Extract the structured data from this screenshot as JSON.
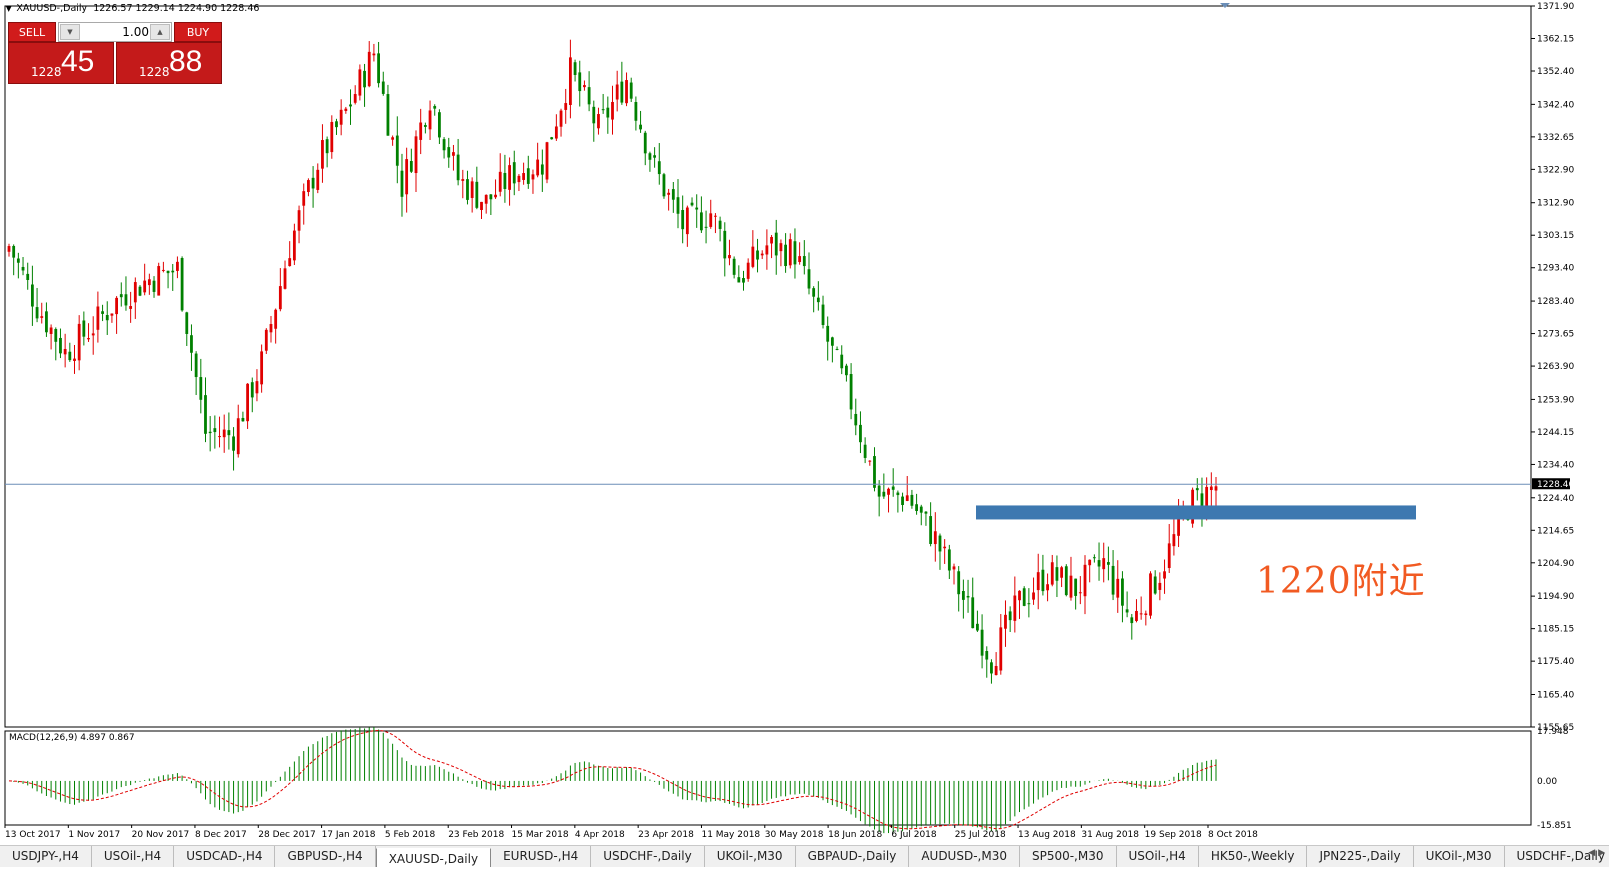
{
  "header": {
    "symbol": "XAUUSD-,Daily",
    "ohlc": "1226.57 1229.14 1224.90 1228.46"
  },
  "trade_panel": {
    "sell_label": "SELL",
    "buy_label": "BUY",
    "lot": "1.00",
    "sell_price_small": "1228",
    "sell_price_big": "45",
    "buy_price_small": "1228",
    "buy_price_big": "88"
  },
  "annotation": {
    "text": "1220附近",
    "level": 1220,
    "color": "#f15a22"
  },
  "colors": {
    "bull": "#e00000",
    "bear": "#008000",
    "zone": "#3d78b0",
    "grid_line": "#6b8eb7",
    "signal": "#e00000",
    "macd": "#008000"
  },
  "price_axis": {
    "labels": [
      "1371.90",
      "1362.15",
      "1352.40",
      "1342.40",
      "1332.65",
      "1322.90",
      "1312.90",
      "1303.15",
      "1293.40",
      "1283.40",
      "1273.65",
      "1263.90",
      "1253.90",
      "1244.15",
      "1234.40",
      "1224.40",
      "1214.65",
      "1204.90",
      "1194.90",
      "1185.15",
      "1175.40",
      "1165.40",
      "1155.65"
    ],
    "current": "1228.46"
  },
  "macd": {
    "label": "MACD(12,26,9) 4.897 0.867",
    "axis_labels": [
      "17.948",
      "0.00",
      "-15.851"
    ]
  },
  "date_axis": [
    "13 Oct 2017",
    "1 Nov 2017",
    "20 Nov 2017",
    "8 Dec 2017",
    "28 Dec 2017",
    "17 Jan 2018",
    "5 Feb 2018",
    "23 Feb 2018",
    "15 Mar 2018",
    "4 Apr 2018",
    "23 Apr 2018",
    "11 May 2018",
    "30 May 2018",
    "18 Jun 2018",
    "6 Jul 2018",
    "25 Jul 2018",
    "13 Aug 2018",
    "31 Aug 2018",
    "19 Sep 2018",
    "8 Oct 2018"
  ],
  "tabs": [
    "USDJPY-,H4",
    "USOil-,H4",
    "USDCAD-,H4",
    "GBPUSD-,H4",
    "XAUUSD-,Daily",
    "EURUSD-,H4",
    "USDCHF-,Daily",
    "UKOil-,M30",
    "GBPAUD-,Daily",
    "AUDUSD-,M30",
    "SP500-,M30",
    "USOil-,H4",
    "HK50-,Weekly",
    "JPN225-,Daily",
    "UKOil-,M30",
    "USDCHF-,Daily"
  ],
  "active_tab": 4,
  "chart_data": {
    "type": "candlestick",
    "symbol": "XAUUSD",
    "timeframe": "Daily",
    "ylim": [
      1155.65,
      1371.9
    ],
    "current_price": 1228.46,
    "zone_level": 1220,
    "anchors": [
      {
        "date": "13 Oct 2017",
        "close": 1300
      },
      {
        "date": "18 Oct 2017",
        "close": 1282
      },
      {
        "date": "27 Oct 2017",
        "close": 1268
      },
      {
        "date": "1 Nov 2017",
        "close": 1276
      },
      {
        "date": "15 Nov 2017",
        "close": 1285
      },
      {
        "date": "20 Nov 2017",
        "close": 1290
      },
      {
        "date": "28 Nov 2017",
        "close": 1293
      },
      {
        "date": "8 Dec 2017",
        "close": 1244
      },
      {
        "date": "12 Dec 2017",
        "close": 1243
      },
      {
        "date": "20 Dec 2017",
        "close": 1265
      },
      {
        "date": "28 Dec 2017",
        "close": 1300
      },
      {
        "date": "4 Jan 2018",
        "close": 1325
      },
      {
        "date": "12 Jan 2018",
        "close": 1340
      },
      {
        "date": "25 Jan 2018",
        "close": 1358
      },
      {
        "date": "5 Feb 2018",
        "close": 1318
      },
      {
        "date": "12 Feb 2018",
        "close": 1345
      },
      {
        "date": "23 Feb 2018",
        "close": 1320
      },
      {
        "date": "1 Mar 2018",
        "close": 1313
      },
      {
        "date": "15 Mar 2018",
        "close": 1322
      },
      {
        "date": "20 Mar 2018",
        "close": 1325
      },
      {
        "date": "26 Mar 2018",
        "close": 1352
      },
      {
        "date": "4 Apr 2018",
        "close": 1335
      },
      {
        "date": "11 Apr 2018",
        "close": 1350
      },
      {
        "date": "23 Apr 2018",
        "close": 1323
      },
      {
        "date": "2 May 2018",
        "close": 1306
      },
      {
        "date": "11 May 2018",
        "close": 1310
      },
      {
        "date": "16 May 2018",
        "close": 1290
      },
      {
        "date": "30 May 2018",
        "close": 1300
      },
      {
        "date": "12 Jun 2018",
        "close": 1298
      },
      {
        "date": "18 Jun 2018",
        "close": 1275
      },
      {
        "date": "6 Jul 2018",
        "close": 1253
      },
      {
        "date": "17 Jul 2018",
        "close": 1225
      },
      {
        "date": "25 Jul 2018",
        "close": 1225
      },
      {
        "date": "3 Aug 2018",
        "close": 1212
      },
      {
        "date": "13 Aug 2018",
        "close": 1194
      },
      {
        "date": "16 Aug 2018",
        "close": 1176
      },
      {
        "date": "22 Aug 2018",
        "close": 1193
      },
      {
        "date": "31 Aug 2018",
        "close": 1202
      },
      {
        "date": "7 Sep 2018",
        "close": 1197
      },
      {
        "date": "19 Sep 2018",
        "close": 1205
      },
      {
        "date": "28 Sep 2018",
        "close": 1187
      },
      {
        "date": "5 Oct 2018",
        "close": 1202
      },
      {
        "date": "11 Oct 2018",
        "close": 1222
      },
      {
        "date": "15 Oct 2018",
        "close": 1228
      }
    ]
  }
}
